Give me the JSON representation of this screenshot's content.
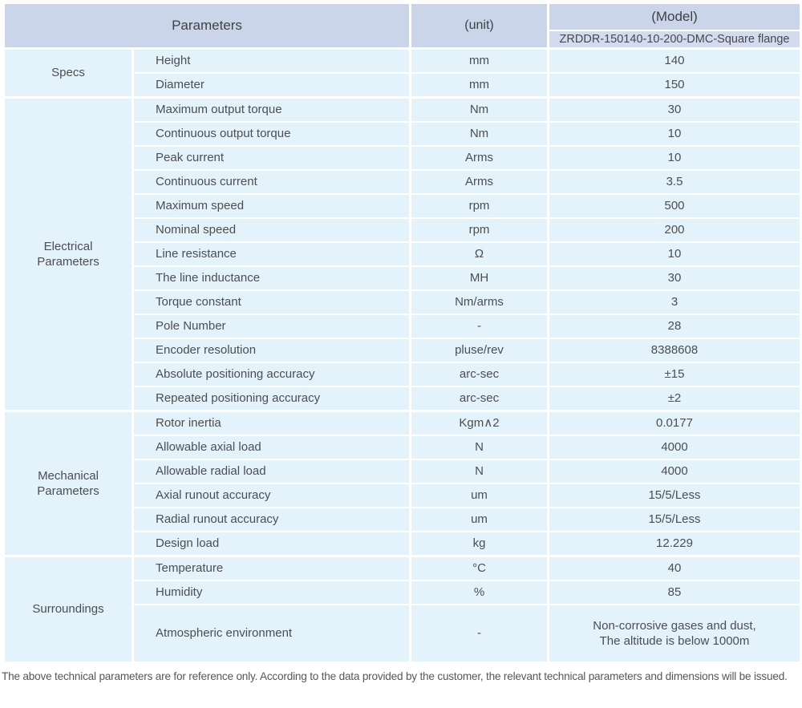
{
  "table": {
    "header": {
      "parameters_label": "Parameters",
      "unit_label": "(unit)",
      "model_label": "(Model)",
      "model_value": "ZRDDR-150140-10-200-DMC-Square flange"
    },
    "groups": [
      {
        "label": "Specs",
        "rows": [
          {
            "name": "Height",
            "unit": "mm",
            "value": "140"
          },
          {
            "name": "Diameter",
            "unit": "mm",
            "value": "150"
          }
        ]
      },
      {
        "label": "Electrical Parameters",
        "rows": [
          {
            "name": "Maximum output torque",
            "unit": "Nm",
            "value": "30"
          },
          {
            "name": "Continuous output torque",
            "unit": "Nm",
            "value": "10"
          },
          {
            "name": "Peak current",
            "unit": "Arms",
            "value": "10"
          },
          {
            "name": "Continuous current",
            "unit": "Arms",
            "value": "3.5"
          },
          {
            "name": "Maximum speed",
            "unit": "rpm",
            "value": "500"
          },
          {
            "name": "Nominal speed",
            "unit": "rpm",
            "value": "200"
          },
          {
            "name": "Line resistance",
            "unit": "Ω",
            "value": "10"
          },
          {
            "name": "The line inductance",
            "unit": "MH",
            "value": "30"
          },
          {
            "name": "Torque constant",
            "unit": "Nm/arms",
            "value": "3"
          },
          {
            "name": "Pole Number",
            "unit": "-",
            "value": "28"
          },
          {
            "name": "Encoder resolution",
            "unit": "pluse/rev",
            "value": "8388608"
          },
          {
            "name": "Absolute positioning accuracy",
            "unit": "arc-sec",
            "value": "±15"
          },
          {
            "name": "Repeated positioning accuracy",
            "unit": "arc-sec",
            "value": "±2"
          }
        ]
      },
      {
        "label": "Mechanical Parameters",
        "rows": [
          {
            "name": "Rotor inertia",
            "unit": "Kgm∧2",
            "value": "0.0177"
          },
          {
            "name": "Allowable axial load",
            "unit": "N",
            "value": "4000"
          },
          {
            "name": "Allowable radial load",
            "unit": "N",
            "value": "4000"
          },
          {
            "name": "Axial runout accuracy",
            "unit": "um",
            "value": "15/5/Less"
          },
          {
            "name": "Radial runout accuracy",
            "unit": "um",
            "value": "15/5/Less"
          },
          {
            "name": "Design load",
            "unit": "kg",
            "value": "12.229"
          }
        ]
      },
      {
        "label": "Surroundings",
        "rows": [
          {
            "name": "Temperature",
            "unit": "°C",
            "value": "40"
          },
          {
            "name": "Humidity",
            "unit": "%",
            "value": "85"
          },
          {
            "name": "Atmospheric environment",
            "unit": "-",
            "value": "Non-corrosive gases and dust,\nThe altitude is below 1000m"
          }
        ]
      }
    ]
  },
  "footer": {
    "note": "The above technical parameters are for reference only. According to the data provided by the customer, the relevant technical parameters and dimensions will be issued."
  },
  "colors": {
    "header_bg": "#cbd5e9",
    "model_row_bg": "#d3dcef",
    "cell_bg": "#e3f2fb",
    "text": "#4c4e51"
  }
}
